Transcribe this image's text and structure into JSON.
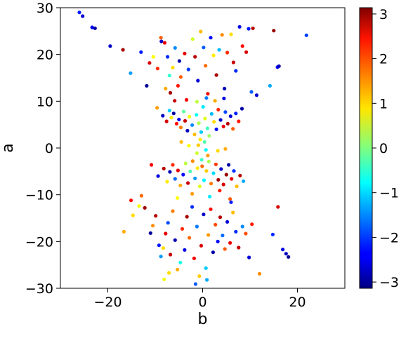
{
  "chart_data": {
    "type": "scatter",
    "xlabel": "b",
    "ylabel": "a",
    "xlim": [
      -30,
      30
    ],
    "ylim": [
      -30,
      30
    ],
    "xticks": [
      -20,
      0,
      20
    ],
    "yticks": [
      -30,
      -20,
      -10,
      0,
      10,
      20,
      30
    ],
    "grid": false,
    "colorbar": {
      "colormap": "jet",
      "range": [
        -3.14,
        3.14
      ],
      "ticks": [
        -3,
        -2,
        -1,
        0,
        1,
        2,
        3
      ]
    },
    "points": [
      [
        -26,
        29,
        -2.2
      ],
      [
        -25.3,
        28.2,
        -2.6
      ],
      [
        -23.3,
        25.8,
        -2.4
      ],
      [
        -22.7,
        25.6,
        -2.9
      ],
      [
        -19.5,
        21.8,
        -2.7
      ],
      [
        -16.8,
        21.0,
        2.9
      ],
      [
        -15.2,
        16.0,
        -1.4
      ],
      [
        -13.0,
        20.5,
        -2.2
      ],
      [
        -11.8,
        13.3,
        -3.0
      ],
      [
        -11.2,
        18.2,
        2.6
      ],
      [
        -10.4,
        19.5,
        0.8
      ],
      [
        -9.5,
        17.0,
        2.1
      ],
      [
        -8.8,
        23.6,
        1.8
      ],
      [
        -8.7,
        22.8,
        -2.7
      ],
      [
        -8.0,
        22.5,
        2.5
      ],
      [
        -7.8,
        12.7,
        1.3
      ],
      [
        -7.4,
        19.5,
        -2.1
      ],
      [
        -7.0,
        15.5,
        -0.5
      ],
      [
        -6.8,
        11.8,
        2.9
      ],
      [
        -6.3,
        17.2,
        1.0
      ],
      [
        -5.8,
        21.4,
        -1.5
      ],
      [
        -5.2,
        13.3,
        2.2
      ],
      [
        -4.9,
        18.6,
        -2.9
      ],
      [
        -4.6,
        15.2,
        1.8
      ],
      [
        -3.8,
        20.2,
        2.5
      ],
      [
        -3.0,
        16.8,
        -2.0
      ],
      [
        -2.1,
        23.3,
        0.5
      ],
      [
        -1.6,
        19.5,
        2.8
      ],
      [
        -1.0,
        14.4,
        -2.6
      ],
      [
        -0.4,
        24.9,
        1.2
      ],
      [
        0.2,
        21.5,
        -1.8
      ],
      [
        0.6,
        17.6,
        1.7
      ],
      [
        1.1,
        11.6,
        2.4
      ],
      [
        1.7,
        23.6,
        -2.3
      ],
      [
        2.3,
        19.8,
        0.9
      ],
      [
        2.9,
        15.6,
        2.9
      ],
      [
        3.5,
        21.0,
        -1.2
      ],
      [
        4.1,
        24.2,
        1.5
      ],
      [
        4.6,
        12.7,
        -2.8
      ],
      [
        5.2,
        20.4,
        2.1
      ],
      [
        6.0,
        24.3,
        1.0
      ],
      [
        6.5,
        18.3,
        2.7
      ],
      [
        7.0,
        16.5,
        -2.1
      ],
      [
        7.8,
        25.9,
        -2.5
      ],
      [
        8.4,
        21.8,
        2.3
      ],
      [
        9.2,
        20.5,
        2.6
      ],
      [
        9.7,
        25.5,
        -2.2
      ],
      [
        10.3,
        12.0,
        -1.8
      ],
      [
        10.6,
        25.6,
        2.8
      ],
      [
        11.4,
        11.3,
        -2.6
      ],
      [
        14.2,
        13.3,
        -1.3
      ],
      [
        15.0,
        25.1,
        3.0
      ],
      [
        15.8,
        17.3,
        -2.4
      ],
      [
        16.1,
        17.5,
        -2.8
      ],
      [
        21.9,
        24.1,
        -2.0
      ],
      [
        -9.6,
        8.6,
        1.4
      ],
      [
        -8.4,
        6.9,
        -2.7
      ],
      [
        -7.6,
        5.7,
        2.6
      ],
      [
        -7.0,
        8.0,
        -1.1
      ],
      [
        -6.6,
        6.5,
        0.9
      ],
      [
        -6.1,
        7.4,
        -2.9
      ],
      [
        -5.5,
        5.2,
        2.3
      ],
      [
        -5.0,
        6.1,
        -2.4
      ],
      [
        -4.6,
        4.4,
        1.6
      ],
      [
        -4.0,
        7.8,
        -0.2
      ],
      [
        -3.7,
        5.8,
        2.7
      ],
      [
        -3.2,
        3.7,
        -2.8
      ],
      [
        -2.8,
        6.7,
        0.7
      ],
      [
        -2.2,
        4.9,
        -1.5
      ],
      [
        -1.7,
        2.9,
        1.2
      ],
      [
        -1.3,
        7.1,
        -0.7
      ],
      [
        -0.8,
        5.3,
        0.3
      ],
      [
        -0.3,
        3.4,
        -1.1
      ],
      [
        0.1,
        8.8,
        -0.9
      ],
      [
        0.5,
        6.3,
        0.6
      ],
      [
        1.0,
        4.2,
        -0.4
      ],
      [
        1.4,
        2.6,
        0.2
      ],
      [
        1.9,
        7.3,
        -1.2
      ],
      [
        2.4,
        5.6,
        1.0
      ],
      [
        2.9,
        4.0,
        -2.3
      ],
      [
        3.3,
        8.2,
        2.1
      ],
      [
        3.8,
        6.0,
        -2.7
      ],
      [
        4.4,
        4.6,
        2.5
      ],
      [
        4.8,
        7.7,
        -1.9
      ],
      [
        5.3,
        5.2,
        2.8
      ],
      [
        5.9,
        6.8,
        -2.6
      ],
      [
        6.4,
        4.1,
        1.8
      ],
      [
        7.0,
        7.4,
        -2.2
      ],
      [
        7.6,
        5.7,
        2.2
      ],
      [
        8.3,
        8.4,
        -2.9
      ],
      [
        -3.4,
        10.3,
        2.4
      ],
      [
        -1.2,
        9.9,
        0.4
      ],
      [
        0.8,
        10.7,
        -1.6
      ],
      [
        2.6,
        10.1,
        1.3
      ],
      [
        4.5,
        10.6,
        -2.5
      ],
      [
        -5.9,
        10.1,
        2.7
      ],
      [
        -0.5,
        1.8,
        0.9
      ],
      [
        0.4,
        1.3,
        -0.3
      ],
      [
        -0.9,
        0.6,
        1.1
      ],
      [
        0.7,
        -0.4,
        -0.8
      ],
      [
        -1.2,
        -1.1,
        0.5
      ],
      [
        1.1,
        -1.6,
        1.4
      ],
      [
        -2.9,
        0.5,
        0.8
      ],
      [
        3.2,
        -0.6,
        1.0
      ],
      [
        -4.5,
        1.3,
        1.2
      ],
      [
        4.8,
        -0.2,
        1.3
      ],
      [
        -0.2,
        -2.5,
        -0.4
      ],
      [
        -10.8,
        -3.6,
        2.4
      ],
      [
        -9.4,
        -6.0,
        -2.6
      ],
      [
        -8.2,
        -4.4,
        2.8
      ],
      [
        -7.5,
        -7.2,
        0.9
      ],
      [
        -6.9,
        -5.1,
        -2.8
      ],
      [
        -6.3,
        -3.6,
        2.1
      ],
      [
        -5.8,
        -6.6,
        -1.7
      ],
      [
        -5.2,
        -4.8,
        2.5
      ],
      [
        -4.7,
        -8.0,
        1.3
      ],
      [
        -4.1,
        -5.7,
        -2.3
      ],
      [
        -3.6,
        -3.3,
        0.4
      ],
      [
        -3.1,
        -7.5,
        2.7
      ],
      [
        -2.6,
        -5.0,
        -0.3
      ],
      [
        -2.1,
        -2.8,
        1.5
      ],
      [
        -1.6,
        -6.5,
        -1.4
      ],
      [
        -1.1,
        -4.3,
        0.9
      ],
      [
        -0.6,
        -8.2,
        0.6
      ],
      [
        -0.1,
        -3.9,
        1.7
      ],
      [
        0.3,
        -6.9,
        -0.8
      ],
      [
        0.8,
        -4.9,
        1.1
      ],
      [
        1.3,
        -2.9,
        0.3
      ],
      [
        1.8,
        -7.6,
        1.6
      ],
      [
        2.3,
        -5.4,
        -1.0
      ],
      [
        2.8,
        -3.5,
        2.0
      ],
      [
        3.3,
        -6.8,
        2.9
      ],
      [
        3.9,
        -4.5,
        -2.7
      ],
      [
        4.4,
        -7.8,
        2.6
      ],
      [
        5.0,
        -5.7,
        3.0
      ],
      [
        5.5,
        -3.6,
        -2.9
      ],
      [
        6.1,
        -6.6,
        2.5
      ],
      [
        6.6,
        -4.9,
        -2.1
      ],
      [
        7.2,
        -8.2,
        1.2
      ],
      [
        7.9,
        -5.9,
        2.8
      ],
      [
        8.6,
        -7.1,
        -1.3
      ],
      [
        -2.2,
        -9.8,
        1.4
      ],
      [
        1.5,
        -10.4,
        -0.9
      ],
      [
        3.6,
        -9.1,
        2.2
      ],
      [
        -5.3,
        -10.7,
        0.8
      ],
      [
        5.8,
        -10.9,
        1.8
      ],
      [
        -12.2,
        -12.8,
        2.9
      ],
      [
        -14.7,
        -14.4,
        1.0
      ],
      [
        -13.4,
        -12.4,
        0.7
      ],
      [
        -11.0,
        -18.2,
        -3.0
      ],
      [
        -10.5,
        -16.6,
        1.5
      ],
      [
        -9.9,
        -14.5,
        2.8
      ],
      [
        -9.2,
        -20.8,
        -2.2
      ],
      [
        -8.8,
        -23.2,
        -1.4
      ],
      [
        -8.3,
        -21.4,
        1.0
      ],
      [
        -7.8,
        -18.3,
        2.5
      ],
      [
        -7.3,
        -16.0,
        -1.9
      ],
      [
        -6.8,
        -22.8,
        2.7
      ],
      [
        -6.3,
        -13.5,
        1.6
      ],
      [
        -5.8,
        -19.7,
        -2.8
      ],
      [
        -5.3,
        -26.0,
        1.3
      ],
      [
        -4.7,
        -24.5,
        -0.6
      ],
      [
        -4.3,
        -17.3,
        2.1
      ],
      [
        -3.8,
        -21.8,
        -2.5
      ],
      [
        -3.3,
        -14.7,
        2.9
      ],
      [
        -2.8,
        -19.2,
        1.7
      ],
      [
        -2.2,
        -12.6,
        -2.1
      ],
      [
        -1.8,
        -23.6,
        2.4
      ],
      [
        -1.2,
        -16.8,
        -1.6
      ],
      [
        -0.7,
        -27.4,
        1.1
      ],
      [
        -0.3,
        -20.9,
        2.6
      ],
      [
        0.2,
        -14.2,
        -2.7
      ],
      [
        0.7,
        -25.7,
        -1.1
      ],
      [
        1.2,
        -18.6,
        1.4
      ],
      [
        1.7,
        -13.1,
        2.3
      ],
      [
        2.2,
        -22.3,
        -2.9
      ],
      [
        2.7,
        -16.4,
        1.9
      ],
      [
        3.2,
        -20.0,
        -2.3
      ],
      [
        3.7,
        -14.8,
        2.8
      ],
      [
        4.2,
        -18.7,
        -1.7
      ],
      [
        4.7,
        -21.6,
        1.8
      ],
      [
        5.2,
        -15.8,
        -2.6
      ],
      [
        5.8,
        -20.3,
        2.5
      ],
      [
        6.4,
        -13.8,
        1.2
      ],
      [
        7.0,
        -17.9,
        -2.1
      ],
      [
        7.6,
        -21.3,
        2.7
      ],
      [
        8.4,
        -16.8,
        -1.5
      ],
      [
        9.1,
        -18.3,
        1.9
      ],
      [
        9.8,
        -23.4,
        -2.6
      ],
      [
        10.4,
        -16.3,
        2.2
      ],
      [
        12.0,
        -26.9,
        1.5
      ],
      [
        14.8,
        -18.5,
        -2.1
      ],
      [
        16.9,
        -21.7,
        -2.5
      ],
      [
        17.6,
        -22.6,
        -2.7
      ],
      [
        18.1,
        -23.3,
        -3.0
      ],
      [
        -16.6,
        -17.9,
        1.3
      ],
      [
        -15.1,
        -11.2,
        2.3
      ],
      [
        -12.9,
        -10.2,
        1.7
      ],
      [
        15.9,
        -12.6,
        2.6
      ],
      [
        -8.1,
        -28.1,
        0.7
      ],
      [
        -1.5,
        -29.1,
        -1.8
      ],
      [
        0.9,
        -28.2,
        -1.3
      ],
      [
        -7.1,
        -26.7,
        1.0
      ],
      [
        6.0,
        -11.6,
        -2.2
      ]
    ]
  }
}
